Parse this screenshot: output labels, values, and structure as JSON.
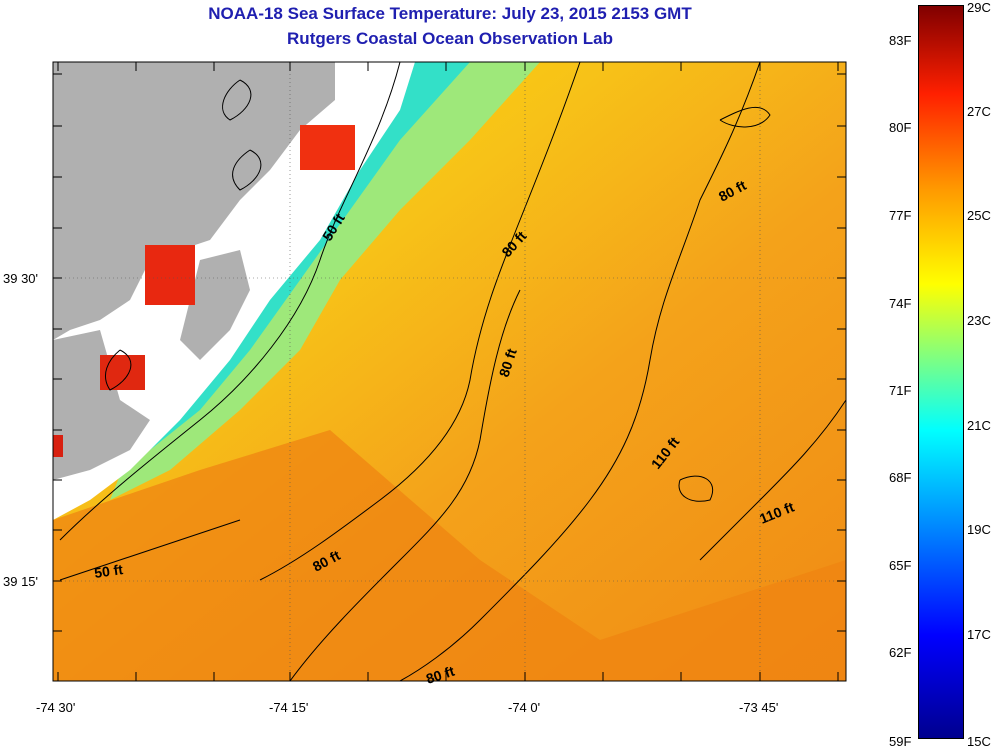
{
  "title_line1": "NOAA-18 Sea Surface Temperature:  July 23, 2015 2153 GMT",
  "title_line2": "Rutgers Coastal Ocean Observation Lab",
  "lat_labels": [
    "39 30'",
    "39 15'"
  ],
  "lon_labels": [
    "-74 30'",
    "-74 15'",
    "-74 0'",
    "-73 45'"
  ],
  "contour_labels": [
    "50 ft",
    "50 ft",
    "80 ft",
    "80 ft",
    "80 ft",
    "80 ft",
    "80 ft",
    "110 ft",
    "110 ft"
  ],
  "colorbar_f_labels": [
    "83F",
    "80F",
    "77F",
    "74F",
    "71F",
    "68F",
    "65F",
    "62F",
    "59F"
  ],
  "colorbar_c_labels": [
    "29C",
    "27C",
    "25C",
    "23C",
    "21C",
    "19C",
    "17C",
    "15C"
  ],
  "colors": {
    "land": "#b0b0b0",
    "title": "#1f1fb0",
    "warm": "#f4a21a",
    "cool": "#33e0c8"
  }
}
